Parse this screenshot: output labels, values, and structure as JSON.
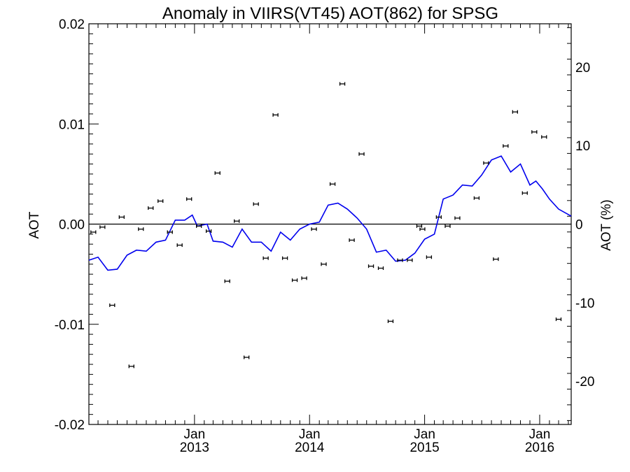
{
  "chart_data": {
    "type": "scatter",
    "title": "Anomaly in VIIRS(VT45) AOT(862) for SPSG",
    "ylabel": "AOT",
    "ylabel_right": "AOT (%)",
    "xlim": [
      "2012-02-01",
      "2016-04-10"
    ],
    "ylim": [
      -0.02,
      0.02
    ],
    "ylim_right": [
      -25.5,
      25.5
    ],
    "yticks": [
      "-0.02",
      "-0.01",
      "0.00",
      "0.01",
      "0.02"
    ],
    "yticks_right": [
      "-20",
      "-10",
      "0",
      "10",
      "20"
    ],
    "xticks": [
      {
        "date": "2013-01-01",
        "month": "Jan",
        "year": "2013"
      },
      {
        "date": "2014-01-01",
        "month": "Jan",
        "year": "2014"
      },
      {
        "date": "2015-01-01",
        "month": "Jan",
        "year": "2015"
      },
      {
        "date": "2016-01-01",
        "month": "Jan",
        "year": "2016"
      }
    ],
    "zero_line": true,
    "grid": false,
    "colors": {
      "points": "#000000",
      "trend": "#0000ee",
      "axes": "#000000"
    },
    "series": [
      {
        "type": "scatter-errorbar",
        "points": [
          {
            "x": "2012-02-15",
            "y": -0.0008
          },
          {
            "x": "2012-03-15",
            "y": -0.0003
          },
          {
            "x": "2012-04-15",
            "y": -0.0081
          },
          {
            "x": "2012-05-15",
            "y": 0.0007
          },
          {
            "x": "2012-06-15",
            "y": -0.0142
          },
          {
            "x": "2012-07-15",
            "y": -0.0005
          },
          {
            "x": "2012-08-15",
            "y": 0.0016
          },
          {
            "x": "2012-09-15",
            "y": 0.0023
          },
          {
            "x": "2012-10-15",
            "y": -0.0008
          },
          {
            "x": "2012-11-15",
            "y": -0.0021
          },
          {
            "x": "2012-12-15",
            "y": 0.0025
          },
          {
            "x": "2013-01-15",
            "y": -0.0002
          },
          {
            "x": "2013-02-15",
            "y": -0.0007
          },
          {
            "x": "2013-03-15",
            "y": 0.0051
          },
          {
            "x": "2013-04-15",
            "y": -0.0057
          },
          {
            "x": "2013-05-15",
            "y": 0.0003
          },
          {
            "x": "2013-06-15",
            "y": -0.0133
          },
          {
            "x": "2013-07-15",
            "y": 0.002
          },
          {
            "x": "2013-08-15",
            "y": -0.0034
          },
          {
            "x": "2013-09-15",
            "y": 0.0109
          },
          {
            "x": "2013-10-15",
            "y": -0.0034
          },
          {
            "x": "2013-11-15",
            "y": -0.0056
          },
          {
            "x": "2013-12-15",
            "y": -0.0054
          },
          {
            "x": "2014-01-15",
            "y": -0.0005
          },
          {
            "x": "2014-02-15",
            "y": -0.004
          },
          {
            "x": "2014-03-15",
            "y": 0.004
          },
          {
            "x": "2014-04-15",
            "y": 0.014
          },
          {
            "x": "2014-05-15",
            "y": -0.0016
          },
          {
            "x": "2014-06-15",
            "y": 0.007
          },
          {
            "x": "2014-07-15",
            "y": -0.0042
          },
          {
            "x": "2014-08-15",
            "y": -0.0044
          },
          {
            "x": "2014-09-15",
            "y": -0.0097
          },
          {
            "x": "2014-10-15",
            "y": -0.0036
          },
          {
            "x": "2014-11-15",
            "y": -0.0036
          },
          {
            "x": "2014-12-15",
            "y": -0.0002
          },
          {
            "x": "2014-12-25",
            "y": -0.0005
          },
          {
            "x": "2015-01-15",
            "y": -0.0033
          },
          {
            "x": "2015-02-15",
            "y": 0.0007
          },
          {
            "x": "2015-03-15",
            "y": -0.0002
          },
          {
            "x": "2015-04-15",
            "y": 0.0006
          },
          {
            "x": "2015-06-15",
            "y": 0.0026
          },
          {
            "x": "2015-07-15",
            "y": 0.0061
          },
          {
            "x": "2015-08-15",
            "y": -0.0035
          },
          {
            "x": "2015-09-15",
            "y": 0.0078
          },
          {
            "x": "2015-10-15",
            "y": 0.0112
          },
          {
            "x": "2015-11-15",
            "y": 0.0031
          },
          {
            "x": "2015-12-15",
            "y": 0.0092
          },
          {
            "x": "2016-01-15",
            "y": 0.0087
          },
          {
            "x": "2016-03-01",
            "y": -0.0095
          }
        ]
      },
      {
        "type": "line",
        "points": [
          {
            "x": "2012-02-01",
            "y": -0.0036
          },
          {
            "x": "2012-03-01",
            "y": -0.0033
          },
          {
            "x": "2012-04-01",
            "y": -0.0046
          },
          {
            "x": "2012-05-01",
            "y": -0.0045
          },
          {
            "x": "2012-06-01",
            "y": -0.0031
          },
          {
            "x": "2012-07-01",
            "y": -0.0026
          },
          {
            "x": "2012-08-01",
            "y": -0.0027
          },
          {
            "x": "2012-09-01",
            "y": -0.0018
          },
          {
            "x": "2012-10-01",
            "y": -0.0016
          },
          {
            "x": "2012-11-01",
            "y": 0.0004
          },
          {
            "x": "2012-12-01",
            "y": 0.0004
          },
          {
            "x": "2012-12-25",
            "y": 0.0009
          },
          {
            "x": "2013-01-10",
            "y": -0.0002
          },
          {
            "x": "2013-02-10",
            "y": 0.0
          },
          {
            "x": "2013-03-01",
            "y": -0.0017
          },
          {
            "x": "2013-04-01",
            "y": -0.0018
          },
          {
            "x": "2013-05-01",
            "y": -0.0023
          },
          {
            "x": "2013-06-01",
            "y": -0.0005
          },
          {
            "x": "2013-07-01",
            "y": -0.0018
          },
          {
            "x": "2013-08-01",
            "y": -0.0018
          },
          {
            "x": "2013-09-01",
            "y": -0.0027
          },
          {
            "x": "2013-10-01",
            "y": -0.0008
          },
          {
            "x": "2013-11-01",
            "y": -0.0016
          },
          {
            "x": "2013-12-01",
            "y": -0.0005
          },
          {
            "x": "2014-01-01",
            "y": 0.0
          },
          {
            "x": "2014-02-01",
            "y": 0.0002
          },
          {
            "x": "2014-03-01",
            "y": 0.0019
          },
          {
            "x": "2014-04-01",
            "y": 0.0021
          },
          {
            "x": "2014-05-01",
            "y": 0.0015
          },
          {
            "x": "2014-06-01",
            "y": 0.0006
          },
          {
            "x": "2014-07-01",
            "y": -0.0005
          },
          {
            "x": "2014-08-01",
            "y": -0.0028
          },
          {
            "x": "2014-09-01",
            "y": -0.0026
          },
          {
            "x": "2014-10-01",
            "y": -0.0037
          },
          {
            "x": "2014-11-01",
            "y": -0.0036
          },
          {
            "x": "2014-12-01",
            "y": -0.0029
          },
          {
            "x": "2015-01-01",
            "y": -0.0015
          },
          {
            "x": "2015-02-01",
            "y": -0.001
          },
          {
            "x": "2015-03-01",
            "y": 0.0025
          },
          {
            "x": "2015-04-01",
            "y": 0.0029
          },
          {
            "x": "2015-05-01",
            "y": 0.0039
          },
          {
            "x": "2015-06-01",
            "y": 0.0038
          },
          {
            "x": "2015-07-01",
            "y": 0.0049
          },
          {
            "x": "2015-08-01",
            "y": 0.0064
          },
          {
            "x": "2015-09-01",
            "y": 0.0068
          },
          {
            "x": "2015-10-01",
            "y": 0.0052
          },
          {
            "x": "2015-11-01",
            "y": 0.006
          },
          {
            "x": "2015-12-01",
            "y": 0.0039
          },
          {
            "x": "2015-12-20",
            "y": 0.0043
          },
          {
            "x": "2016-01-10",
            "y": 0.0035
          },
          {
            "x": "2016-02-01",
            "y": 0.0025
          },
          {
            "x": "2016-03-01",
            "y": 0.0015
          },
          {
            "x": "2016-04-10",
            "y": 0.0008
          }
        ]
      }
    ]
  }
}
